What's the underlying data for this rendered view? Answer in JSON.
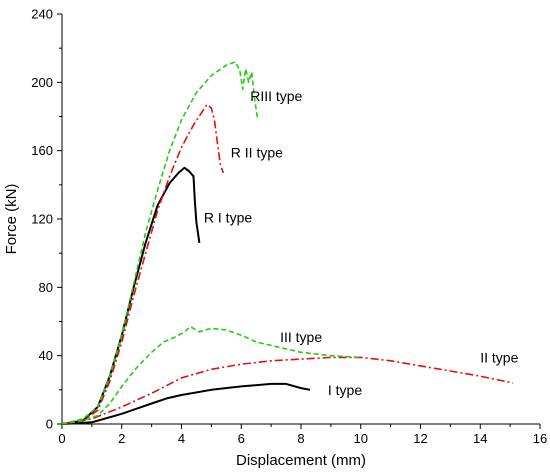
{
  "chart_data": {
    "type": "line",
    "xlabel": "Displacement  (mm)",
    "ylabel": "Force  (kN)",
    "xlim": [
      0,
      16
    ],
    "ylim": [
      0,
      240
    ],
    "xticks": [
      "0",
      "2",
      "4",
      "6",
      "8",
      "10",
      "12",
      "14",
      "16"
    ],
    "yticks": [
      "0",
      "40",
      "80",
      "120",
      "160",
      "200",
      "240"
    ],
    "grid": false,
    "series": [
      {
        "name": "R I type",
        "style": "solid",
        "color": "#000000",
        "label_pos": [
          4.75,
          118
        ],
        "x": [
          0,
          0.7,
          1.2,
          1.6,
          2.0,
          2.4,
          2.8,
          3.2,
          3.6,
          3.9,
          4.1,
          4.25,
          4.4,
          4.45,
          4.5,
          4.55,
          4.6
        ],
        "y": [
          0,
          2,
          10,
          28,
          52,
          80,
          106,
          128,
          141,
          147,
          150,
          148,
          145,
          130,
          118,
          112,
          106
        ]
      },
      {
        "name": "R II type",
        "style": "dashdot",
        "color": "#dd1111",
        "label_pos": [
          5.65,
          156
        ],
        "x": [
          0,
          0.7,
          1.2,
          1.6,
          2.0,
          2.4,
          2.8,
          3.2,
          3.6,
          4.0,
          4.4,
          4.7,
          4.85,
          5.0,
          5.1,
          5.2,
          5.3,
          5.4
        ],
        "y": [
          0,
          2,
          8,
          25,
          48,
          75,
          100,
          125,
          145,
          162,
          175,
          183,
          187,
          185,
          178,
          165,
          152,
          147
        ]
      },
      {
        "name": "RIII type",
        "style": "dashed",
        "color": "#22cc11",
        "label_pos": [
          6.3,
          189
        ],
        "x": [
          0,
          0.7,
          1.2,
          1.6,
          2.0,
          2.4,
          2.8,
          3.2,
          3.6,
          4.0,
          4.5,
          5.0,
          5.5,
          5.8,
          5.95,
          6.05,
          6.15,
          6.25,
          6.35,
          6.45,
          6.55
        ],
        "y": [
          0,
          3,
          10,
          28,
          52,
          82,
          112,
          137,
          160,
          178,
          194,
          204,
          210,
          212,
          207,
          196,
          208,
          200,
          206,
          190,
          178
        ]
      },
      {
        "name": "I type",
        "style": "solid",
        "color": "#000000",
        "label_pos": [
          8.9,
          17
        ],
        "x": [
          0,
          1,
          2,
          3,
          3.5,
          4,
          5,
          6,
          7,
          7.5,
          8,
          8.3
        ],
        "y": [
          0,
          1,
          6,
          12,
          15,
          17,
          20,
          22,
          23.5,
          23.5,
          21,
          20
        ]
      },
      {
        "name": "II type",
        "style": "dashdot",
        "color": "#dd1111",
        "label_pos": [
          14.0,
          36
        ],
        "x": [
          0,
          1,
          2,
          3,
          4,
          5,
          6,
          7,
          8,
          9,
          10,
          11,
          12,
          13,
          14,
          15.1
        ],
        "y": [
          0,
          3,
          10,
          18,
          27,
          32,
          35,
          37,
          38,
          39,
          39,
          37,
          34,
          31,
          28,
          24
        ]
      },
      {
        "name": "III type",
        "style": "dashed",
        "color": "#22cc11",
        "label_pos": [
          7.3,
          48
        ],
        "x": [
          0,
          0.7,
          1.2,
          1.6,
          2.0,
          2.5,
          3.0,
          3.4,
          3.8,
          4.1,
          4.3,
          4.6,
          5.0,
          5.5,
          6.0,
          6.5,
          7.0,
          8.0,
          9.0,
          10.0
        ],
        "y": [
          0,
          2,
          5,
          12,
          22,
          33,
          42,
          48,
          51,
          54,
          57,
          54,
          56,
          55,
          52,
          48,
          46,
          42,
          40,
          39
        ]
      }
    ]
  }
}
